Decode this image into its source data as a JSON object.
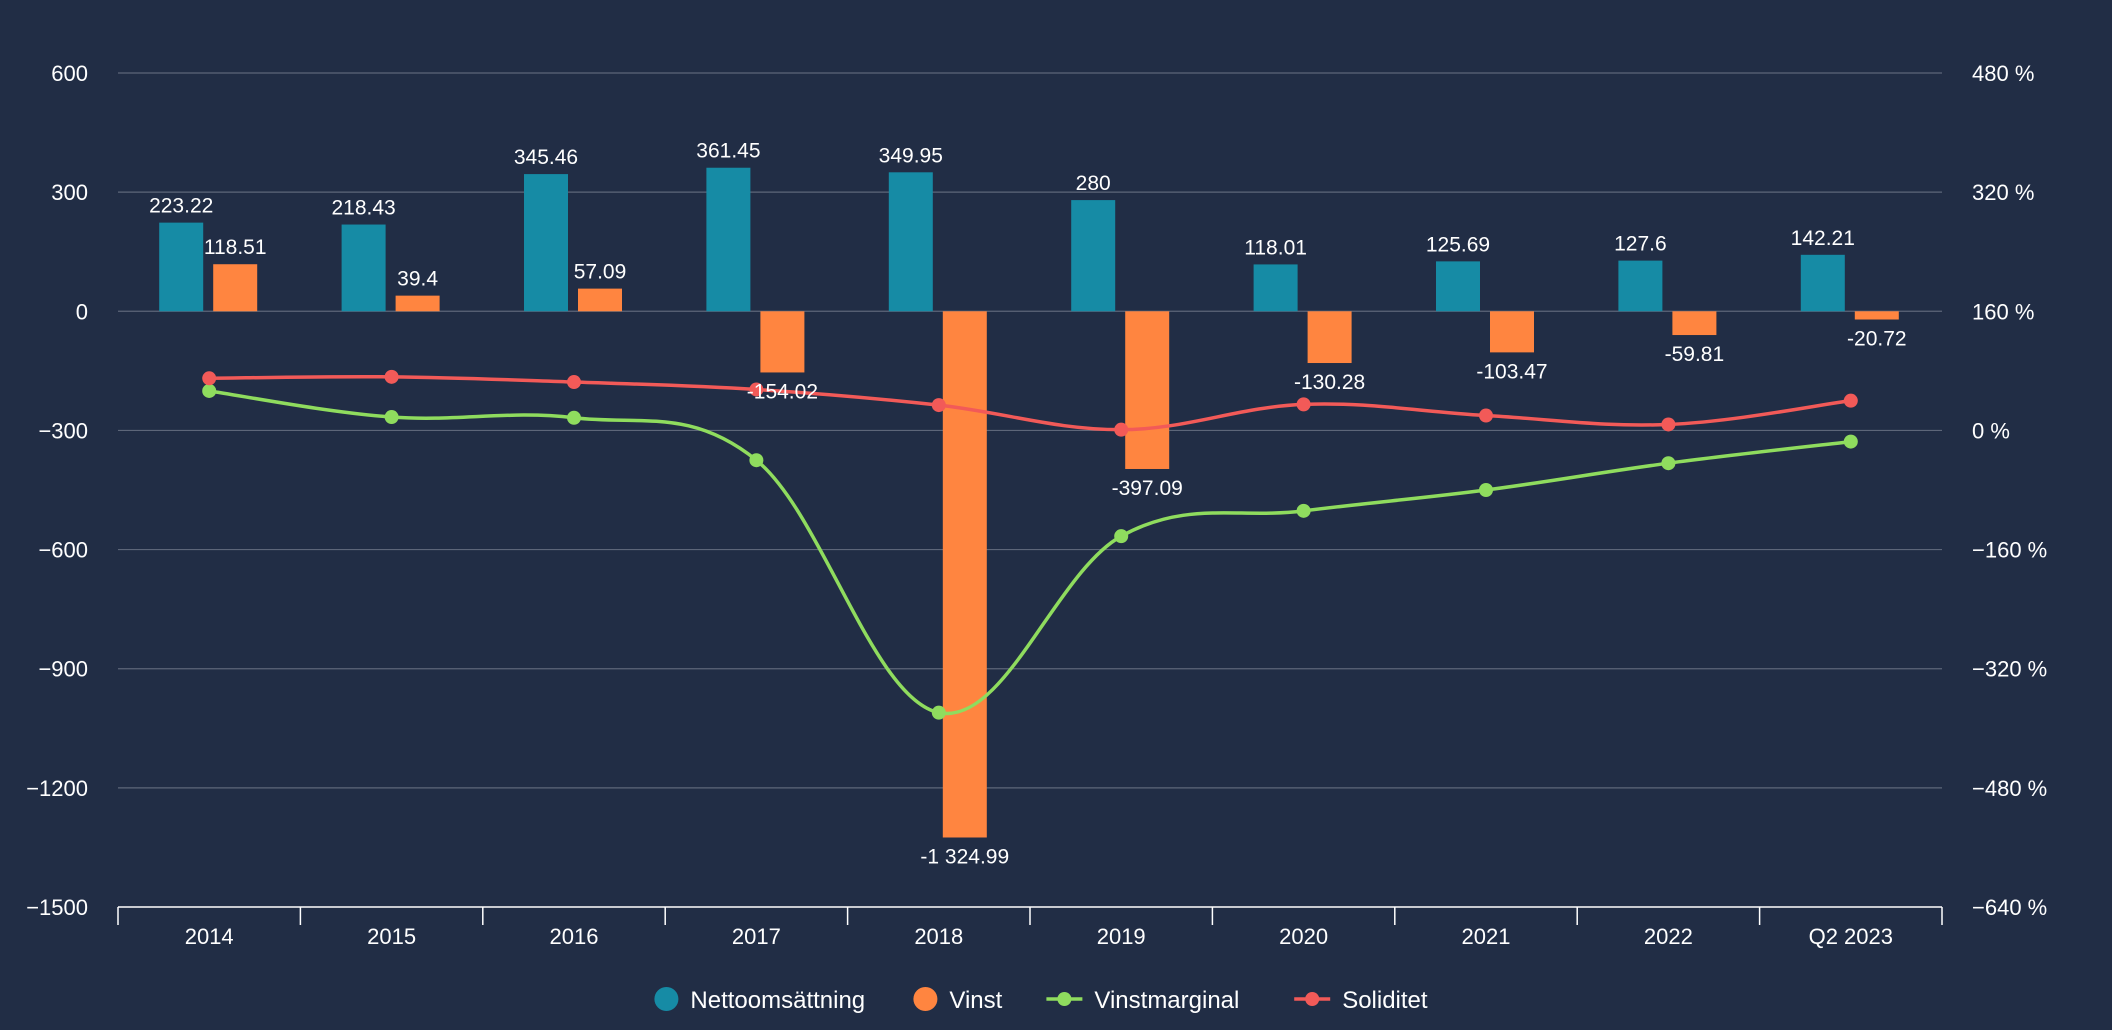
{
  "colors": {
    "background": "#212d45",
    "grid": "#5d6679",
    "axis": "#ffffff",
    "nettoomsattning": "#168ba5",
    "vinst": "#ff8540",
    "vinstmarginal": "#8fdc5e",
    "soliditet": "#f25a58",
    "text": "#ffffff"
  },
  "chart_data": {
    "type": "bar",
    "categories": [
      "2014",
      "2015",
      "2016",
      "2017",
      "2018",
      "2019",
      "2020",
      "2021",
      "2022",
      "Q2 2023"
    ],
    "series": [
      {
        "name": "Nettoomsättning",
        "kind": "bar",
        "axis": "left",
        "values": [
          223.22,
          218.43,
          345.46,
          361.45,
          349.95,
          280,
          118.01,
          125.69,
          127.6,
          142.21
        ],
        "labels": [
          "223.22",
          "218.43",
          "345.46",
          "361.45",
          "349.95",
          "280",
          "118.01",
          "125.69",
          "127.6",
          "142.21"
        ]
      },
      {
        "name": "Vinst",
        "kind": "bar",
        "axis": "left",
        "values": [
          118.51,
          39.4,
          57.09,
          -154.02,
          -1324.99,
          -397.09,
          -130.28,
          -103.47,
          -59.81,
          -20.72
        ],
        "labels": [
          "118.51",
          "39.4",
          "57.09",
          "-154.02",
          "-1 324.99",
          "-397.09",
          "-130.28",
          "-103.47",
          "-59.81",
          "-20.72"
        ]
      },
      {
        "name": "Vinstmarginal",
        "kind": "line",
        "axis": "right",
        "values": [
          53,
          18,
          17,
          -40,
          -379,
          -142,
          -108,
          -80,
          -44,
          -15
        ]
      },
      {
        "name": "Soliditet",
        "kind": "line",
        "axis": "right",
        "values": [
          70,
          72,
          65,
          55,
          34,
          1,
          35,
          20,
          8,
          40
        ]
      }
    ],
    "y_left": {
      "ylim": [
        -1500,
        600
      ],
      "ticks": [
        600,
        300,
        0,
        -300,
        -600,
        -900,
        -1200,
        -1500
      ],
      "tick_labels": [
        "600",
        "300",
        "0",
        "−300",
        "−600",
        "−900",
        "−1200",
        "−1500"
      ]
    },
    "y_right": {
      "ylim": [
        -640,
        480
      ],
      "ticks": [
        480,
        320,
        160,
        0,
        -160,
        -320,
        -480,
        -640
      ],
      "tick_labels": [
        "480 %",
        "320 %",
        "160 %",
        "0 %",
        "−160 %",
        "−320 %",
        "−480 %",
        "−640 %"
      ]
    },
    "grid": true,
    "legend": {
      "position": "bottom-center",
      "items": [
        {
          "label": "Nettoomsättning",
          "marker": "circle",
          "color_key": "nettoomsattning"
        },
        {
          "label": "Vinst",
          "marker": "circle",
          "color_key": "vinst"
        },
        {
          "label": "Vinstmarginal",
          "marker": "line",
          "color_key": "vinstmarginal"
        },
        {
          "label": "Soliditet",
          "marker": "line",
          "color_key": "soliditet"
        }
      ]
    }
  }
}
